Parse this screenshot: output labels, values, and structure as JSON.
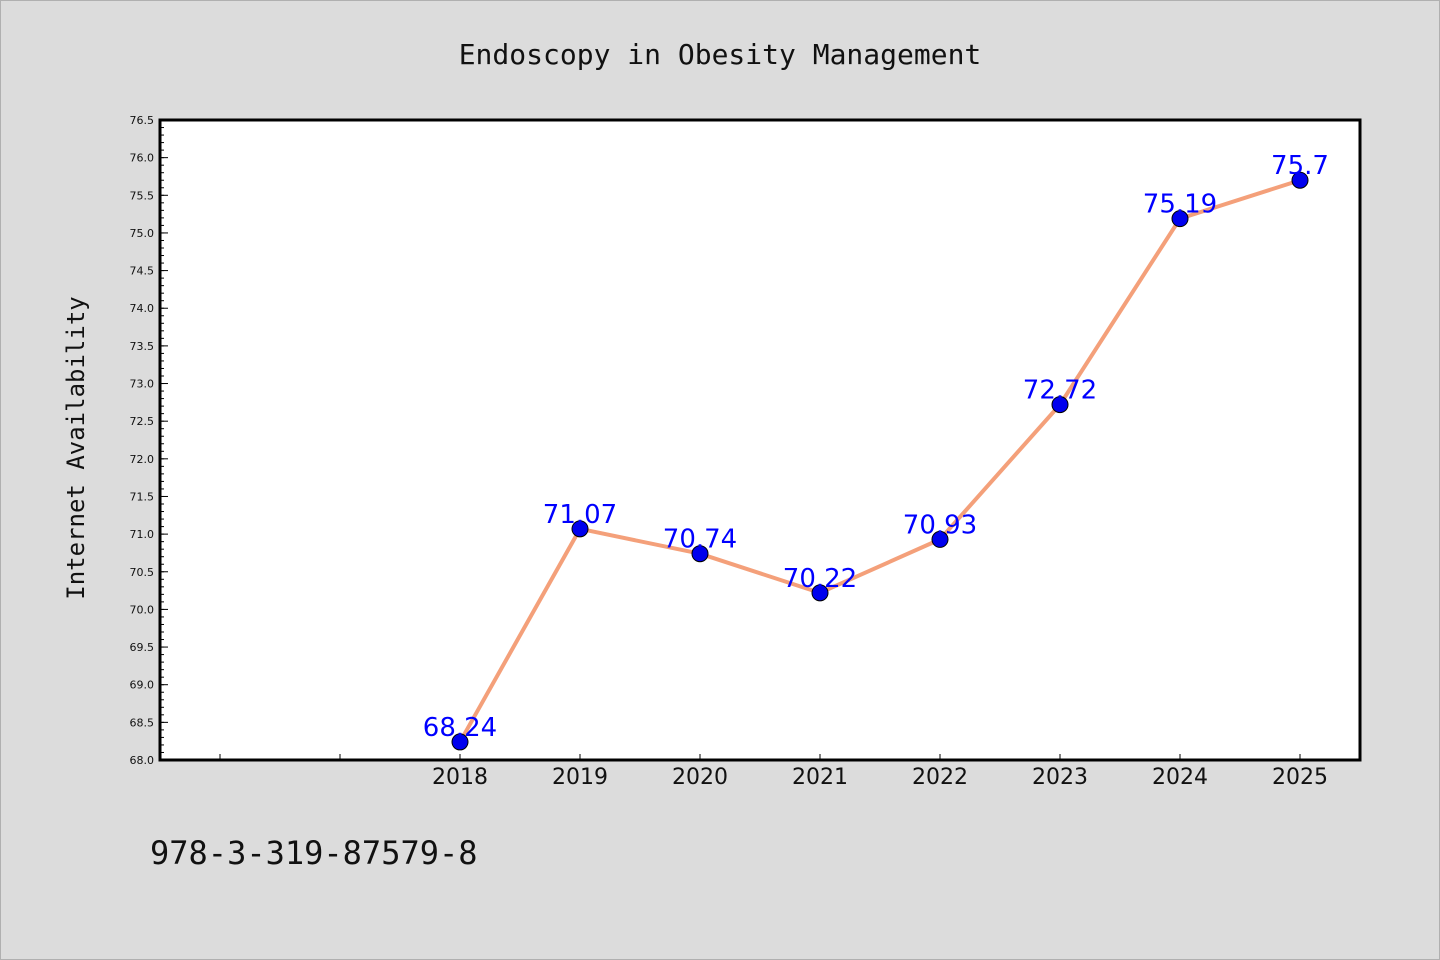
{
  "chart_data": {
    "type": "line",
    "title": "Endoscopy in Obesity Management",
    "xlabel": "",
    "ylabel": "Internet Availability",
    "categories": [
      "2018",
      "2019",
      "2020",
      "2021",
      "2022",
      "2023",
      "2024",
      "2025"
    ],
    "values": [
      68.24,
      71.07,
      70.74,
      70.22,
      70.93,
      72.72,
      75.19,
      75.7
    ],
    "data_labels": [
      "68.24",
      "71.07",
      "70.74",
      "70.22",
      "70.93",
      "72.72",
      "75.19",
      "75.7"
    ],
    "ylim": [
      68.0,
      76.5
    ],
    "yticks": [
      "68.0",
      "68.5",
      "69.0",
      "69.5",
      "70.0",
      "70.5",
      "71.0",
      "71.5",
      "72.0",
      "72.5",
      "73.0",
      "73.5",
      "74.0",
      "74.5",
      "75.0",
      "75.5",
      "76.0",
      "76.5"
    ],
    "grid": false,
    "legend": "none",
    "colors": {
      "line": "#f4a07a",
      "marker": "#0000ee",
      "label": "#0000ff",
      "plot_background": "#ffffff",
      "page_background": "#dcdcdc"
    }
  },
  "caption": "978-3-319-87579-8"
}
